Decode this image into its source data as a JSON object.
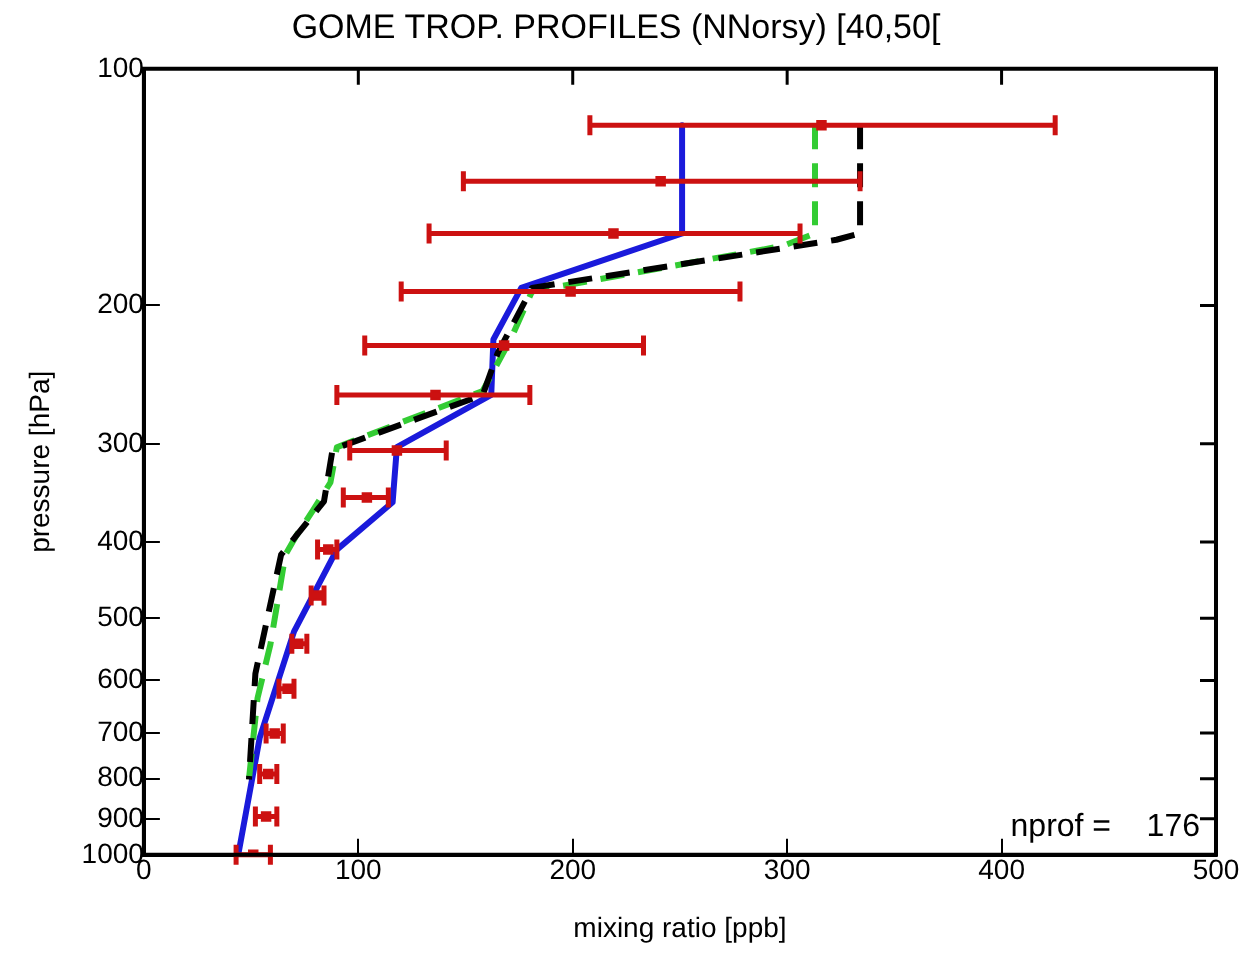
{
  "chart_data": {
    "type": "line",
    "title": "GOME TROP. PROFILES (NNorsy) [40,50[",
    "xlabel": "mixing ratio [ppb]",
    "ylabel": "pressure [hPa]",
    "xlim": [
      0,
      500
    ],
    "xticks": [
      0,
      100,
      200,
      300,
      400,
      500
    ],
    "ylim": [
      1000,
      100
    ],
    "yticks": [
      100,
      200,
      300,
      400,
      500,
      600,
      700,
      800,
      900,
      1000
    ],
    "log": "y",
    "grid": false,
    "legend": false,
    "annotations": [
      "nprof =    176"
    ],
    "series": [
      {
        "type": "scatter",
        "marker": "square",
        "color": "#cc1111",
        "x": [
          316,
          241,
          219,
          199,
          168,
          136,
          118,
          104,
          86,
          81,
          72,
          67,
          61,
          58,
          57,
          51
        ],
        "values": [
          118,
          139,
          162,
          192,
          225,
          260,
          306,
          351,
          409,
          468,
          539,
          615,
          701,
          789,
          894,
          1000
        ],
        "xerrors": [
          [
            208,
            425
          ],
          [
            149,
            334
          ],
          [
            133,
            306
          ],
          [
            120,
            278
          ],
          [
            103,
            233
          ],
          [
            90,
            180
          ],
          [
            96,
            141
          ],
          [
            93,
            114
          ],
          [
            81,
            90
          ],
          [
            78,
            84
          ],
          [
            69,
            76
          ],
          [
            63,
            70
          ],
          [
            57,
            65
          ],
          [
            54,
            62
          ],
          [
            52,
            62
          ],
          [
            43,
            59
          ]
        ]
      },
      {
        "color": "#000000",
        "line_style": "dashed",
        "x": [
          334,
          334,
          323,
          181,
          165,
          158,
          88,
          84,
          71,
          64,
          52,
          49
        ],
        "values": [
          118,
          162,
          165,
          190,
          230,
          260,
          305,
          355,
          393,
          415,
          588,
          802
        ]
      },
      {
        "color": "#33cc33",
        "line_style": "dashed",
        "x": [
          313,
          313,
          298,
          181,
          171,
          158,
          90,
          87,
          79,
          71,
          66,
          59,
          53,
          49
        ],
        "values": [
          118,
          162,
          168,
          192,
          221,
          257,
          303,
          336,
          364,
          393,
          415,
          540,
          632,
          801
        ]
      },
      {
        "color": "#1a1adb",
        "line_style": "solid",
        "x": [
          251,
          251,
          176,
          163,
          162,
          118,
          116,
          90,
          70,
          54,
          44
        ],
        "values": [
          118,
          162,
          190,
          221,
          260,
          303,
          356,
          409,
          520,
          710,
          1000
        ]
      }
    ]
  }
}
